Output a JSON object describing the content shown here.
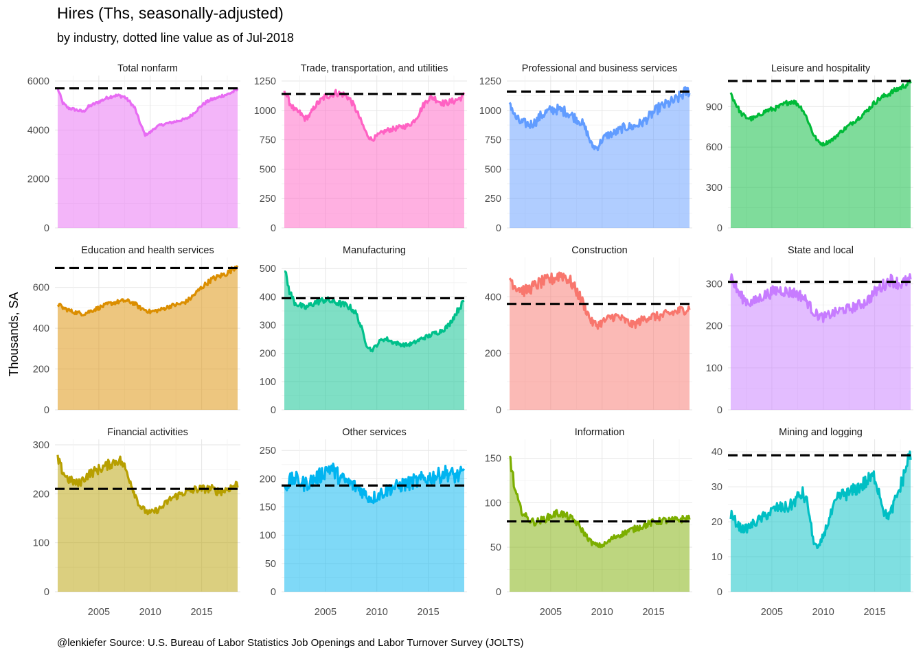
{
  "title": "Hires (Ths, seasonally-adjusted)",
  "subtitle": "by industry, dotted line value as of Jul-2018",
  "caption": "@lenkiefer Source: U.S. Bureau of Labor Statistics Job Openings and Labor Turnover Survey (JOLTS)",
  "ylabel": "Thousands, SA",
  "chart_data": {
    "type": "area",
    "facet_layout": {
      "rows": 3,
      "cols": 4
    },
    "x_range": [
      2001,
      2018.5
    ],
    "x_ticks": [
      2005,
      2010,
      2015
    ],
    "reference_line": {
      "style": "dashed",
      "color": "#000000",
      "date": "Jul-2018"
    },
    "grid": true,
    "legend": "none",
    "panels": [
      {
        "title": "Total nonfarm",
        "color": "#e76bf3",
        "ylim": [
          0,
          6000
        ],
        "yticks": [
          0,
          2000,
          4000,
          6000
        ],
        "reference_value": 5700,
        "noise": 0.012,
        "x": [
          2001.0,
          2001.5,
          2002.0,
          2002.5,
          2003.0,
          2003.5,
          2004.0,
          2004.5,
          2005.0,
          2005.5,
          2006.0,
          2006.5,
          2007.0,
          2007.5,
          2008.0,
          2008.5,
          2009.0,
          2009.5,
          2010.0,
          2010.5,
          2011.0,
          2011.5,
          2012.0,
          2012.5,
          2013.0,
          2013.5,
          2014.0,
          2014.5,
          2015.0,
          2015.5,
          2016.0,
          2016.5,
          2017.0,
          2017.5,
          2018.0,
          2018.5
        ],
        "values": [
          5700,
          5100,
          4900,
          4850,
          4800,
          4750,
          4950,
          5050,
          5150,
          5250,
          5350,
          5400,
          5400,
          5350,
          5150,
          4900,
          4300,
          3800,
          3900,
          4100,
          4200,
          4250,
          4300,
          4350,
          4400,
          4450,
          4600,
          4800,
          5000,
          5150,
          5250,
          5300,
          5400,
          5450,
          5550,
          5650
        ]
      },
      {
        "title": "Trade, transportation, and utilities",
        "color": "#ff61c3",
        "ylim": [
          0,
          1250
        ],
        "yticks": [
          0,
          250,
          500,
          750,
          1000,
          1250
        ],
        "reference_value": 1140,
        "noise": 0.025,
        "x": [
          2001.0,
          2001.5,
          2002.0,
          2002.5,
          2003.0,
          2003.5,
          2004.0,
          2004.5,
          2005.0,
          2005.5,
          2006.0,
          2006.5,
          2007.0,
          2007.5,
          2008.0,
          2008.5,
          2009.0,
          2009.5,
          2010.0,
          2010.5,
          2011.0,
          2011.5,
          2012.0,
          2012.5,
          2013.0,
          2013.5,
          2014.0,
          2014.5,
          2015.0,
          2015.5,
          2016.0,
          2016.5,
          2017.0,
          2017.5,
          2018.0,
          2018.5
        ],
        "values": [
          1180,
          1070,
          1000,
          980,
          930,
          960,
          1040,
          1080,
          1120,
          1130,
          1150,
          1140,
          1130,
          1080,
          1000,
          900,
          800,
          750,
          780,
          810,
          830,
          840,
          850,
          860,
          870,
          900,
          960,
          1040,
          1100,
          1110,
          1080,
          1060,
          1070,
          1080,
          1100,
          1130
        ]
      },
      {
        "title": "Professional and business services",
        "color": "#619cff",
        "ylim": [
          0,
          1250
        ],
        "yticks": [
          0,
          250,
          500,
          750,
          1000,
          1250
        ],
        "reference_value": 1160,
        "noise": 0.045,
        "x": [
          2001.0,
          2001.5,
          2002.0,
          2002.5,
          2003.0,
          2003.5,
          2004.0,
          2004.5,
          2005.0,
          2005.5,
          2006.0,
          2006.5,
          2007.0,
          2007.5,
          2008.0,
          2008.5,
          2009.0,
          2009.5,
          2010.0,
          2010.5,
          2011.0,
          2011.5,
          2012.0,
          2012.5,
          2013.0,
          2013.5,
          2014.0,
          2014.5,
          2015.0,
          2015.5,
          2016.0,
          2016.5,
          2017.0,
          2017.5,
          2018.0,
          2018.5
        ],
        "values": [
          1080,
          950,
          900,
          890,
          880,
          900,
          950,
          980,
          1000,
          1010,
          1000,
          990,
          960,
          930,
          900,
          820,
          700,
          680,
          750,
          790,
          800,
          820,
          850,
          860,
          860,
          880,
          900,
          940,
          980,
          1020,
          1040,
          1060,
          1080,
          1110,
          1150,
          1170
        ]
      },
      {
        "title": "Leisure and hospitality",
        "color": "#00ba38",
        "ylim": [
          0,
          1090
        ],
        "yticks": [
          0,
          300,
          600,
          900
        ],
        "reference_value": 1090,
        "noise": 0.02,
        "x": [
          2001.0,
          2001.5,
          2002.0,
          2002.5,
          2003.0,
          2003.5,
          2004.0,
          2004.5,
          2005.0,
          2005.5,
          2006.0,
          2006.5,
          2007.0,
          2007.5,
          2008.0,
          2008.5,
          2009.0,
          2009.5,
          2010.0,
          2010.5,
          2011.0,
          2011.5,
          2012.0,
          2012.5,
          2013.0,
          2013.5,
          2014.0,
          2014.5,
          2015.0,
          2015.5,
          2016.0,
          2016.5,
          2017.0,
          2017.5,
          2018.0,
          2018.5
        ],
        "values": [
          1000,
          920,
          850,
          820,
          810,
          820,
          850,
          870,
          880,
          890,
          910,
          930,
          940,
          920,
          880,
          800,
          700,
          640,
          620,
          640,
          660,
          700,
          730,
          760,
          790,
          820,
          850,
          890,
          930,
          960,
          980,
          1000,
          1020,
          1040,
          1060,
          1080
        ]
      },
      {
        "title": "Education and health services",
        "color": "#db8e00",
        "ylim": [
          0,
          720
        ],
        "yticks": [
          0,
          200,
          400,
          600
        ],
        "reference_value": 695,
        "noise": 0.02,
        "x": [
          2001.0,
          2001.5,
          2002.0,
          2002.5,
          2003.0,
          2003.5,
          2004.0,
          2004.5,
          2005.0,
          2005.5,
          2006.0,
          2006.5,
          2007.0,
          2007.5,
          2008.0,
          2008.5,
          2009.0,
          2009.5,
          2010.0,
          2010.5,
          2011.0,
          2011.5,
          2012.0,
          2012.5,
          2013.0,
          2013.5,
          2014.0,
          2014.5,
          2015.0,
          2015.5,
          2016.0,
          2016.5,
          2017.0,
          2017.5,
          2018.0,
          2018.5
        ],
        "values": [
          520,
          500,
          490,
          480,
          475,
          470,
          480,
          490,
          500,
          510,
          520,
          525,
          530,
          535,
          530,
          520,
          500,
          490,
          480,
          485,
          490,
          500,
          510,
          515,
          520,
          530,
          550,
          575,
          600,
          620,
          640,
          650,
          660,
          670,
          690,
          710
        ]
      },
      {
        "title": "Manufacturing",
        "color": "#00c08b",
        "ylim": [
          0,
          520
        ],
        "yticks": [
          0,
          100,
          200,
          300,
          400,
          500
        ],
        "reference_value": 395,
        "noise": 0.03,
        "x": [
          2001.0,
          2001.5,
          2002.0,
          2002.5,
          2003.0,
          2003.5,
          2004.0,
          2004.5,
          2005.0,
          2005.5,
          2006.0,
          2006.5,
          2007.0,
          2007.5,
          2008.0,
          2008.5,
          2009.0,
          2009.5,
          2010.0,
          2010.5,
          2011.0,
          2011.5,
          2012.0,
          2012.5,
          2013.0,
          2013.5,
          2014.0,
          2014.5,
          2015.0,
          2015.5,
          2016.0,
          2016.5,
          2017.0,
          2017.5,
          2018.0,
          2018.5
        ],
        "values": [
          500,
          420,
          380,
          370,
          360,
          370,
          380,
          385,
          390,
          385,
          380,
          375,
          370,
          360,
          340,
          290,
          230,
          210,
          230,
          250,
          250,
          240,
          235,
          230,
          230,
          235,
          245,
          255,
          260,
          270,
          275,
          285,
          300,
          330,
          360,
          385
        ]
      },
      {
        "title": "Construction",
        "color": "#f8766d",
        "ylim": [
          0,
          520
        ],
        "yticks": [
          0,
          200,
          400
        ],
        "reference_value": 375,
        "noise": 0.05,
        "x": [
          2001.0,
          2001.5,
          2002.0,
          2002.5,
          2003.0,
          2003.5,
          2004.0,
          2004.5,
          2005.0,
          2005.5,
          2006.0,
          2006.5,
          2007.0,
          2007.5,
          2008.0,
          2008.5,
          2009.0,
          2009.5,
          2010.0,
          2010.5,
          2011.0,
          2011.5,
          2012.0,
          2012.5,
          2013.0,
          2013.5,
          2014.0,
          2014.5,
          2015.0,
          2015.5,
          2016.0,
          2016.5,
          2017.0,
          2017.5,
          2018.0,
          2018.5
        ],
        "values": [
          470,
          440,
          430,
          420,
          430,
          440,
          450,
          455,
          460,
          470,
          480,
          470,
          450,
          420,
          390,
          350,
          310,
          300,
          310,
          320,
          330,
          330,
          320,
          310,
          300,
          310,
          320,
          330,
          330,
          330,
          335,
          340,
          345,
          350,
          355,
          360
        ]
      },
      {
        "title": "State and local",
        "color": "#c77cff",
        "ylim": [
          0,
          350
        ],
        "yticks": [
          0,
          100,
          200,
          300
        ],
        "reference_value": 305,
        "noise": 0.05,
        "x": [
          2001.0,
          2001.5,
          2002.0,
          2002.5,
          2003.0,
          2003.5,
          2004.0,
          2004.5,
          2005.0,
          2005.5,
          2006.0,
          2006.5,
          2007.0,
          2007.5,
          2008.0,
          2008.5,
          2009.0,
          2009.5,
          2010.0,
          2010.5,
          2011.0,
          2011.5,
          2012.0,
          2012.5,
          2013.0,
          2013.5,
          2014.0,
          2014.5,
          2015.0,
          2015.5,
          2016.0,
          2016.5,
          2017.0,
          2017.5,
          2018.0,
          2018.5
        ],
        "values": [
          320,
          290,
          270,
          260,
          255,
          260,
          270,
          275,
          280,
          285,
          285,
          280,
          280,
          275,
          270,
          255,
          235,
          225,
          220,
          225,
          230,
          235,
          240,
          240,
          245,
          250,
          255,
          265,
          280,
          290,
          300,
          310,
          305,
          300,
          305,
          310
        ]
      },
      {
        "title": "Financial activities",
        "color": "#b79f00",
        "ylim": [
          0,
          300
        ],
        "yticks": [
          0,
          100,
          200,
          300
        ],
        "reference_value": 210,
        "noise": 0.04,
        "x": [
          2001.0,
          2001.5,
          2002.0,
          2002.5,
          2003.0,
          2003.5,
          2004.0,
          2004.5,
          2005.0,
          2005.5,
          2006.0,
          2006.5,
          2007.0,
          2007.5,
          2008.0,
          2008.5,
          2009.0,
          2009.5,
          2010.0,
          2010.5,
          2011.0,
          2011.5,
          2012.0,
          2012.5,
          2013.0,
          2013.5,
          2014.0,
          2014.5,
          2015.0,
          2015.5,
          2016.0,
          2016.5,
          2017.0,
          2017.5,
          2018.0,
          2018.5
        ],
        "values": [
          270,
          245,
          230,
          225,
          220,
          230,
          240,
          245,
          250,
          255,
          260,
          265,
          270,
          255,
          230,
          200,
          175,
          165,
          160,
          165,
          170,
          180,
          190,
          195,
          200,
          205,
          205,
          210,
          210,
          210,
          210,
          205,
          205,
          210,
          215,
          220
        ]
      },
      {
        "title": "Other services",
        "color": "#00b4f0",
        "ylim": [
          0,
          260
        ],
        "yticks": [
          0,
          50,
          100,
          150,
          200,
          250
        ],
        "reference_value": 188,
        "noise": 0.07,
        "x": [
          2001.0,
          2001.5,
          2002.0,
          2002.5,
          2003.0,
          2003.5,
          2004.0,
          2004.5,
          2005.0,
          2005.5,
          2006.0,
          2006.5,
          2007.0,
          2007.5,
          2008.0,
          2008.5,
          2009.0,
          2009.5,
          2010.0,
          2010.5,
          2011.0,
          2011.5,
          2012.0,
          2012.5,
          2013.0,
          2013.5,
          2014.0,
          2014.5,
          2015.0,
          2015.5,
          2016.0,
          2016.5,
          2017.0,
          2017.5,
          2018.0,
          2018.5
        ],
        "values": [
          185,
          195,
          200,
          195,
          190,
          195,
          200,
          205,
          215,
          220,
          210,
          200,
          195,
          190,
          185,
          180,
          170,
          165,
          170,
          175,
          180,
          185,
          185,
          190,
          190,
          195,
          195,
          200,
          200,
          205,
          205,
          210,
          210,
          205,
          205,
          210
        ]
      },
      {
        "title": "Information",
        "color": "#7cae00",
        "ylim": [
          0,
          165
        ],
        "yticks": [
          0,
          50,
          100,
          150
        ],
        "reference_value": 79,
        "noise": 0.05,
        "x": [
          2001.0,
          2001.5,
          2002.0,
          2002.5,
          2003.0,
          2003.5,
          2004.0,
          2004.5,
          2005.0,
          2005.5,
          2006.0,
          2006.5,
          2007.0,
          2007.5,
          2008.0,
          2008.5,
          2009.0,
          2009.5,
          2010.0,
          2010.5,
          2011.0,
          2011.5,
          2012.0,
          2012.5,
          2013.0,
          2013.5,
          2014.0,
          2014.5,
          2015.0,
          2015.5,
          2016.0,
          2016.5,
          2017.0,
          2017.5,
          2018.0,
          2018.5
        ],
        "values": [
          155,
          115,
          95,
          85,
          80,
          78,
          80,
          82,
          85,
          88,
          88,
          85,
          82,
          78,
          70,
          62,
          55,
          52,
          52,
          55,
          60,
          63,
          65,
          68,
          70,
          72,
          74,
          76,
          78,
          79,
          80,
          80,
          80,
          81,
          82,
          83
        ]
      },
      {
        "title": "Mining and logging",
        "color": "#00bfc4",
        "ylim": [
          0,
          42
        ],
        "yticks": [
          0,
          10,
          20,
          30,
          40
        ],
        "reference_value": 39,
        "noise": 0.07,
        "x": [
          2001.0,
          2001.5,
          2002.0,
          2002.5,
          2003.0,
          2003.5,
          2004.0,
          2004.5,
          2005.0,
          2005.5,
          2006.0,
          2006.5,
          2007.0,
          2007.5,
          2008.0,
          2008.5,
          2009.0,
          2009.5,
          2010.0,
          2010.5,
          2011.0,
          2011.5,
          2012.0,
          2012.5,
          2013.0,
          2013.5,
          2014.0,
          2014.5,
          2015.0,
          2015.5,
          2016.0,
          2016.5,
          2017.0,
          2017.5,
          2018.0,
          2018.5
        ],
        "values": [
          22,
          20,
          18,
          18,
          19,
          20,
          21,
          22,
          23,
          24,
          24,
          24,
          25,
          27,
          28,
          25,
          15,
          12,
          16,
          20,
          24,
          27,
          28,
          28,
          29,
          30,
          31,
          32,
          33,
          28,
          22,
          22,
          26,
          30,
          35,
          40
        ]
      }
    ]
  }
}
